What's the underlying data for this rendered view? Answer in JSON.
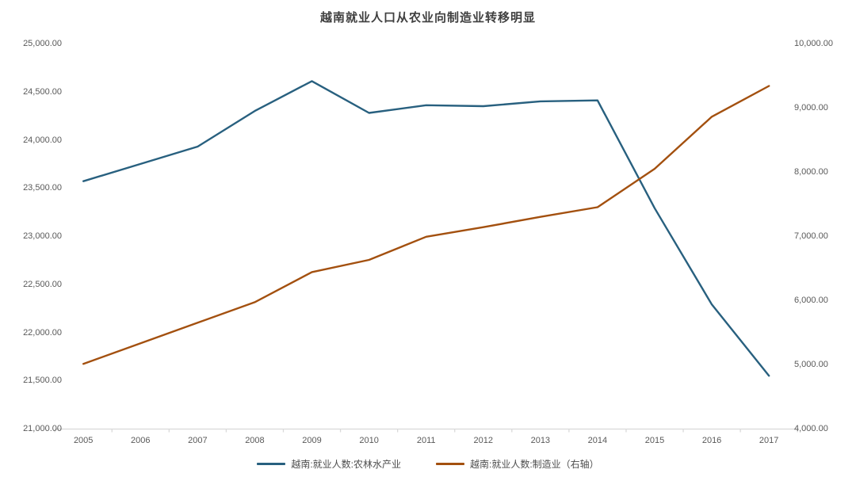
{
  "title": "越南就业人口从农业向制造业转移明显",
  "colors": {
    "background": "#ffffff",
    "title_text": "#3f3f3f",
    "axis_label_text": "#595959",
    "axis_line": "#d9d9d9",
    "series_agriculture": "#28607f",
    "series_manufacturing": "#a3500f"
  },
  "chart_data": {
    "type": "line",
    "title": "越南就业人口从农业向制造业转移明显",
    "grid": false,
    "legend_position": "bottom",
    "categories": [
      "2005",
      "2006",
      "2007",
      "2008",
      "2009",
      "2010",
      "2011",
      "2012",
      "2013",
      "2014",
      "2015",
      "2016",
      "2017"
    ],
    "series": [
      {
        "name": "越南:就业人数:农林水产业",
        "axis": "left",
        "color": "#28607f",
        "values": [
          23570,
          23750,
          23930,
          24300,
          24610,
          24280,
          24360,
          24350,
          24400,
          24410,
          23290,
          22290,
          21550
        ]
      },
      {
        "name": "越南:就业人数:制造业（右轴）",
        "axis": "right",
        "color": "#a3500f",
        "values": [
          5010,
          5330,
          5650,
          5970,
          6440,
          6630,
          6990,
          7140,
          7300,
          7450,
          8050,
          8860,
          9340
        ]
      }
    ],
    "left_axis": {
      "min": 21000,
      "max": 25000,
      "step": 500,
      "tick_labels": [
        "25,000.00",
        "24,500.00",
        "24,000.00",
        "23,500.00",
        "23,000.00",
        "22,500.00",
        "22,000.00",
        "21,500.00",
        "21,000.00"
      ]
    },
    "right_axis": {
      "min": 4000,
      "max": 10000,
      "step": 1000,
      "tick_labels": [
        "10,000.00",
        "9,000.00",
        "8,000.00",
        "7,000.00",
        "6,000.00",
        "5,000.00",
        "4,000.00"
      ]
    }
  }
}
